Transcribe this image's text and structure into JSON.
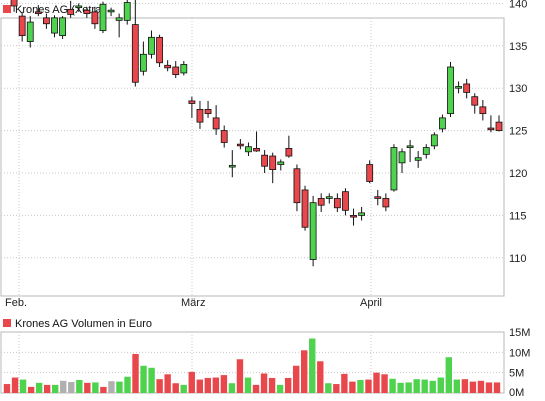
{
  "price_chart": {
    "title": "Krones AG (Xetra)",
    "legend_color": "#e8474b",
    "y_ticks": [
      110,
      115,
      120,
      125,
      130,
      135,
      140
    ],
    "x_labels": [
      "Feb.",
      "März",
      "April"
    ],
    "up_color": "#4fd34f",
    "down_color": "#e8474b"
  },
  "volume_chart": {
    "title": "Krones AG Volumen in Euro",
    "legend_color": "#e8474b",
    "y_ticks": [
      "0M",
      "5M",
      "10M",
      "15M"
    ]
  },
  "chart_data": [
    {
      "type": "candlestick",
      "title": "Krones AG (Xetra)",
      "ylim": [
        105,
        144
      ],
      "x_labels": [
        "Feb.",
        "März",
        "April"
      ],
      "candles": [
        {
          "o": 141.5,
          "h": 142.0,
          "l": 140.5,
          "c": 141.0,
          "d": "down"
        },
        {
          "o": 140.8,
          "h": 141.3,
          "l": 139.0,
          "c": 139.7,
          "d": "down"
        },
        {
          "o": 138.5,
          "h": 139.0,
          "l": 135.5,
          "c": 136.2,
          "d": "down"
        },
        {
          "o": 135.5,
          "h": 138.5,
          "l": 134.8,
          "c": 137.8,
          "d": "up"
        },
        {
          "o": 139.0,
          "h": 139.8,
          "l": 138.5,
          "c": 138.8,
          "d": "down"
        },
        {
          "o": 138.3,
          "h": 138.8,
          "l": 137.0,
          "c": 137.6,
          "d": "down"
        },
        {
          "o": 136.5,
          "h": 138.6,
          "l": 136.0,
          "c": 138.3,
          "d": "up"
        },
        {
          "o": 136.2,
          "h": 138.5,
          "l": 135.8,
          "c": 138.3,
          "d": "up"
        },
        {
          "o": 138.7,
          "h": 140.3,
          "l": 138.3,
          "c": 139.3,
          "d": "down"
        },
        {
          "o": 139.5,
          "h": 140.0,
          "l": 139.0,
          "c": 139.7,
          "d": "up"
        },
        {
          "o": 139.2,
          "h": 139.6,
          "l": 138.3,
          "c": 138.8,
          "d": "down"
        },
        {
          "o": 139.0,
          "h": 139.6,
          "l": 137.0,
          "c": 137.6,
          "d": "down"
        },
        {
          "o": 136.8,
          "h": 140.2,
          "l": 136.5,
          "c": 139.9,
          "d": "up"
        },
        {
          "o": 139.0,
          "h": 139.5,
          "l": 138.5,
          "c": 139.2,
          "d": "up"
        },
        {
          "o": 138.3,
          "h": 138.8,
          "l": 136.0,
          "c": 138.0,
          "d": "up"
        },
        {
          "o": 138.0,
          "h": 140.5,
          "l": 137.5,
          "c": 140.1,
          "d": "up"
        },
        {
          "o": 137.5,
          "h": 143.5,
          "l": 130.2,
          "c": 130.7,
          "d": "down"
        },
        {
          "o": 132.0,
          "h": 135.5,
          "l": 131.5,
          "c": 134.0,
          "d": "up"
        },
        {
          "o": 134.0,
          "h": 136.8,
          "l": 133.5,
          "c": 136.0,
          "d": "up"
        },
        {
          "o": 136.0,
          "h": 136.3,
          "l": 132.5,
          "c": 133.0,
          "d": "down"
        },
        {
          "o": 132.7,
          "h": 133.3,
          "l": 132.0,
          "c": 132.4,
          "d": "down"
        },
        {
          "o": 132.5,
          "h": 133.2,
          "l": 131.2,
          "c": 131.6,
          "d": "down"
        },
        {
          "o": 131.8,
          "h": 133.2,
          "l": 131.5,
          "c": 132.8,
          "d": "up"
        },
        {
          "o": 128.5,
          "h": 129.0,
          "l": 126.5,
          "c": 128.2,
          "d": "down"
        },
        {
          "o": 127.5,
          "h": 128.5,
          "l": 125.2,
          "c": 126.0,
          "d": "down"
        },
        {
          "o": 127.5,
          "h": 128.5,
          "l": 126.5,
          "c": 127.0,
          "d": "down"
        },
        {
          "o": 126.5,
          "h": 128.0,
          "l": 124.5,
          "c": 125.2,
          "d": "down"
        },
        {
          "o": 125.0,
          "h": 125.6,
          "l": 123.0,
          "c": 123.6,
          "d": "down"
        },
        {
          "o": 120.7,
          "h": 122.7,
          "l": 119.5,
          "c": 120.9,
          "d": "up"
        },
        {
          "o": 123.4,
          "h": 124.0,
          "l": 122.8,
          "c": 123.2,
          "d": "down"
        },
        {
          "o": 122.5,
          "h": 123.6,
          "l": 122.0,
          "c": 123.1,
          "d": "up"
        },
        {
          "o": 122.9,
          "h": 124.9,
          "l": 122.5,
          "c": 122.6,
          "d": "down"
        },
        {
          "o": 122.1,
          "h": 122.7,
          "l": 120.0,
          "c": 120.8,
          "d": "down"
        },
        {
          "o": 122.0,
          "h": 122.4,
          "l": 118.8,
          "c": 120.4,
          "d": "down"
        },
        {
          "o": 121.0,
          "h": 121.6,
          "l": 120.3,
          "c": 121.3,
          "d": "up"
        },
        {
          "o": 122.9,
          "h": 124.4,
          "l": 121.8,
          "c": 122.0,
          "d": "down"
        },
        {
          "o": 120.5,
          "h": 121.0,
          "l": 115.5,
          "c": 116.5,
          "d": "down"
        },
        {
          "o": 118.0,
          "h": 118.5,
          "l": 113.2,
          "c": 113.6,
          "d": "down"
        },
        {
          "o": 116.5,
          "h": 117.3,
          "l": 109.0,
          "c": 109.8,
          "d": "up"
        },
        {
          "o": 117.0,
          "h": 117.6,
          "l": 115.4,
          "c": 116.2,
          "d": "down"
        },
        {
          "o": 117.0,
          "h": 117.6,
          "l": 116.4,
          "c": 117.2,
          "d": "up"
        },
        {
          "o": 117.0,
          "h": 117.6,
          "l": 115.4,
          "c": 115.9,
          "d": "down"
        },
        {
          "o": 117.8,
          "h": 118.2,
          "l": 115.0,
          "c": 115.6,
          "d": "down"
        },
        {
          "o": 115.0,
          "h": 115.8,
          "l": 113.8,
          "c": 114.8,
          "d": "down"
        },
        {
          "o": 115.0,
          "h": 116.0,
          "l": 114.4,
          "c": 115.3,
          "d": "up"
        },
        {
          "o": 121.0,
          "h": 121.5,
          "l": 118.8,
          "c": 119.0,
          "d": "down"
        },
        {
          "o": 117.2,
          "h": 118.0,
          "l": 116.2,
          "c": 117.0,
          "d": "down"
        },
        {
          "o": 117.0,
          "h": 117.6,
          "l": 115.5,
          "c": 116.0,
          "d": "down"
        },
        {
          "o": 118.0,
          "h": 123.4,
          "l": 117.8,
          "c": 123.0,
          "d": "up"
        },
        {
          "o": 121.2,
          "h": 122.9,
          "l": 120.0,
          "c": 122.5,
          "d": "up"
        },
        {
          "o": 123.0,
          "h": 123.9,
          "l": 121.3,
          "c": 123.2,
          "d": "up"
        },
        {
          "o": 121.5,
          "h": 122.6,
          "l": 120.6,
          "c": 121.8,
          "d": "up"
        },
        {
          "o": 122.2,
          "h": 123.4,
          "l": 121.7,
          "c": 123.0,
          "d": "up"
        },
        {
          "o": 123.2,
          "h": 124.8,
          "l": 122.8,
          "c": 124.5,
          "d": "up"
        },
        {
          "o": 125.2,
          "h": 126.9,
          "l": 124.8,
          "c": 126.5,
          "d": "up"
        },
        {
          "o": 127.0,
          "h": 133.1,
          "l": 126.6,
          "c": 132.5,
          "d": "up"
        },
        {
          "o": 130.2,
          "h": 130.8,
          "l": 129.4,
          "c": 130.0,
          "d": "up"
        },
        {
          "o": 130.5,
          "h": 131.1,
          "l": 128.8,
          "c": 129.5,
          "d": "down"
        },
        {
          "o": 129.0,
          "h": 129.4,
          "l": 127.0,
          "c": 128.0,
          "d": "down"
        },
        {
          "o": 127.8,
          "h": 128.6,
          "l": 126.2,
          "c": 127.0,
          "d": "down"
        },
        {
          "o": 125.3,
          "h": 126.8,
          "l": 124.8,
          "c": 125.1,
          "d": "down"
        },
        {
          "o": 126.0,
          "h": 126.8,
          "l": 124.9,
          "c": 125.0,
          "d": "down"
        }
      ]
    },
    {
      "type": "bar",
      "title": "Krones AG Volumen in Euro",
      "ylim": [
        0,
        15
      ],
      "y_unit": "M",
      "values": [
        2.2,
        3.8,
        3.3,
        1.5,
        2.5,
        2.0,
        2.0,
        3.0,
        2.7,
        3.2,
        2.5,
        2.6,
        1.5,
        2.9,
        2.8,
        4.0,
        9.6,
        6.7,
        6.2,
        3.4,
        4.6,
        2.4,
        2.0,
        5.2,
        3.3,
        3.7,
        3.8,
        4.4,
        2.4,
        8.3,
        3.8,
        2.0,
        4.8,
        3.7,
        2.0,
        3.7,
        6.7,
        10.5,
        13.4,
        7.8,
        2.4,
        2.2,
        4.7,
        2.8,
        3.2,
        3.3,
        5.0,
        4.6,
        3.5,
        2.5,
        2.6,
        3.4,
        3.3,
        3.0,
        3.8,
        8.8,
        3.3,
        3.4,
        2.8,
        3.0,
        2.6,
        2.6
      ],
      "colors": [
        "r",
        "r",
        "g",
        "r",
        "g",
        "r",
        "g",
        "s",
        "s",
        "g",
        "r",
        "g",
        "r",
        "s",
        "g",
        "g",
        "r",
        "g",
        "g",
        "r",
        "r",
        "r",
        "g",
        "r",
        "r",
        "r",
        "r",
        "r",
        "g",
        "r",
        "g",
        "r",
        "r",
        "r",
        "g",
        "r",
        "r",
        "r",
        "g",
        "r",
        "g",
        "r",
        "r",
        "r",
        "g",
        "r",
        "r",
        "r",
        "g",
        "g",
        "g",
        "g",
        "g",
        "g",
        "g",
        "g",
        "g",
        "r",
        "r",
        "r",
        "r",
        "r"
      ],
      "color_key": {
        "r": "#e8474b",
        "g": "#4fd34f",
        "s": "#b0b0b0"
      }
    }
  ]
}
